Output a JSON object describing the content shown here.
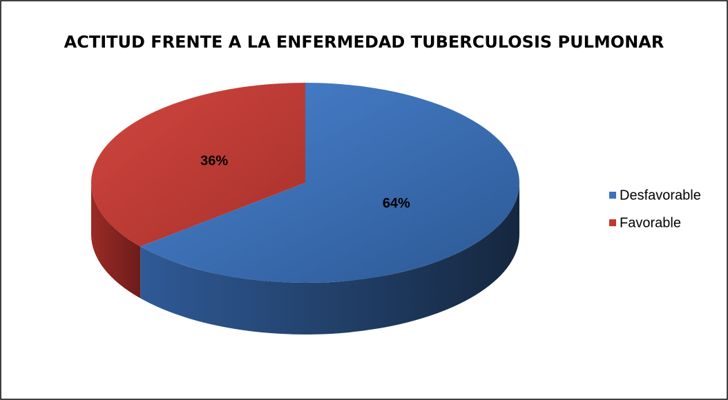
{
  "chart_data": {
    "type": "pie",
    "title": "ACTITUD FRENTE A LA ENFERMEDAD TUBERCULOSIS PULMONAR",
    "categories": [
      "Desfavorable",
      "Favorable"
    ],
    "values": [
      64,
      36
    ],
    "value_labels": [
      "64%",
      "36%"
    ],
    "colors": [
      "#3c71bd",
      "#c0392f"
    ],
    "legend": "right"
  }
}
